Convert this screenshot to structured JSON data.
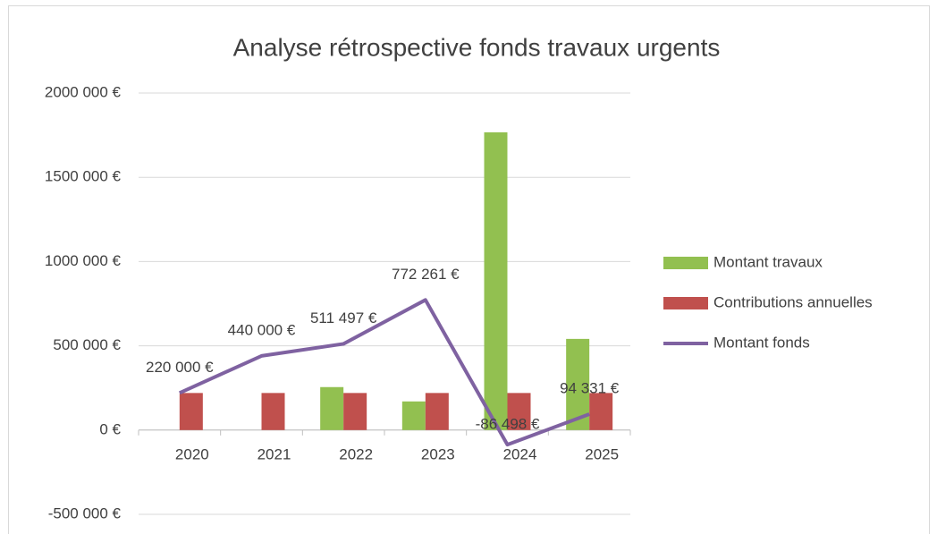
{
  "chart_data": {
    "type": "bar_line",
    "title": "Analyse rétrospective fonds travaux urgents",
    "categories": [
      "2020",
      "2021",
      "2022",
      "2023",
      "2024",
      "2025"
    ],
    "series": [
      {
        "name": "Montant travaux",
        "type": "bar",
        "color": "#92c050",
        "values": [
          0,
          0,
          255000,
          170000,
          1767000,
          541000
        ]
      },
      {
        "name": "Contributions annuelles",
        "type": "bar",
        "color": "#c0504d",
        "values": [
          220000,
          220000,
          220000,
          220000,
          220000,
          220000
        ]
      },
      {
        "name": "Montant fonds",
        "type": "line",
        "color": "#7f62a1",
        "values": [
          220000,
          440000,
          511497,
          772261,
          -86498,
          94331
        ],
        "value_labels": [
          "220 000 €",
          "440 000 €",
          "511 497 €",
          "772 261 €",
          "-86 498 €",
          "94 331 €"
        ]
      }
    ],
    "ylim": [
      -500000,
      2000000
    ],
    "yticks": [
      {
        "value": -500000,
        "label": "-500 000 €"
      },
      {
        "value": 0,
        "label": "0 €"
      },
      {
        "value": 500000,
        "label": "500 000 €"
      },
      {
        "value": 1000000,
        "label": "1000 000 €"
      },
      {
        "value": 1500000,
        "label": "1500 000 €"
      },
      {
        "value": 2000000,
        "label": "2000 000 €"
      }
    ],
    "grid": true,
    "legend": "right"
  }
}
